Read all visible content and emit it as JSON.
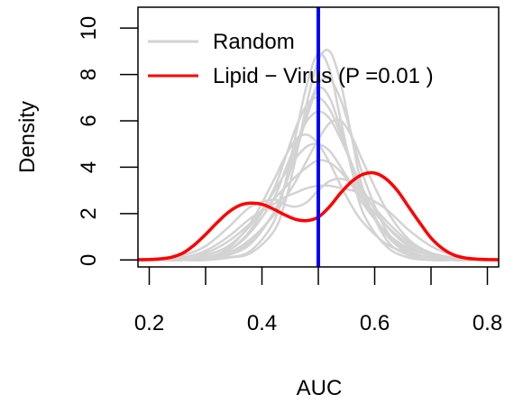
{
  "chart_data": {
    "type": "line",
    "title": "",
    "xlabel": "AUC",
    "ylabel": "Density",
    "xlim": [
      0.18,
      0.82
    ],
    "ylim": [
      -0.3,
      10.9
    ],
    "xticks": [
      0.2,
      0.4,
      0.6,
      0.8
    ],
    "xtick_labels": [
      "0.2",
      "0.4",
      "0.6",
      "0.8"
    ],
    "yticks": [
      0,
      2,
      4,
      6,
      8,
      10
    ],
    "ytick_labels": [
      "0",
      "2",
      "4",
      "6",
      "8",
      "10"
    ],
    "legend_position": "top-left",
    "grid": false,
    "vline": {
      "x": 0.5,
      "color": "#0000ff"
    },
    "colors": {
      "random": "#d3d3d3",
      "highlight": "#ff0000",
      "vline": "#0000ff"
    },
    "series": [
      {
        "name": "Random",
        "role": "random",
        "x": [
          0.18,
          0.22,
          0.26,
          0.3,
          0.34,
          0.38,
          0.42,
          0.44,
          0.46,
          0.48,
          0.5,
          0.52,
          0.54,
          0.56,
          0.58,
          0.62,
          0.66,
          0.7,
          0.74,
          0.78,
          0.82
        ],
        "values": [
          0,
          0,
          0,
          0.1,
          0.3,
          0.8,
          2.0,
          3.1,
          4.6,
          6.2,
          7.4,
          7.0,
          5.6,
          4.0,
          2.6,
          1.1,
          0.4,
          0.1,
          0,
          0,
          0
        ]
      },
      {
        "name": "",
        "role": "random",
        "x": [
          0.18,
          0.22,
          0.26,
          0.3,
          0.34,
          0.38,
          0.42,
          0.44,
          0.46,
          0.48,
          0.5,
          0.52,
          0.54,
          0.56,
          0.58,
          0.62,
          0.66,
          0.7,
          0.74,
          0.78,
          0.82
        ],
        "values": [
          0,
          0,
          0,
          0,
          0.1,
          0.4,
          1.6,
          3.2,
          5.4,
          7.6,
          8.9,
          8.2,
          6.0,
          3.8,
          2.0,
          0.6,
          0.1,
          0,
          0,
          0,
          0
        ]
      },
      {
        "name": "",
        "role": "random",
        "x": [
          0.18,
          0.22,
          0.26,
          0.3,
          0.34,
          0.38,
          0.42,
          0.44,
          0.46,
          0.48,
          0.5,
          0.52,
          0.54,
          0.56,
          0.58,
          0.62,
          0.66,
          0.7,
          0.74,
          0.78,
          0.82
        ],
        "values": [
          0,
          0,
          0.1,
          0.3,
          0.8,
          1.6,
          2.6,
          3.1,
          3.6,
          4.0,
          4.3,
          4.2,
          3.8,
          3.2,
          2.6,
          1.5,
          0.7,
          0.3,
          0.1,
          0,
          0
        ]
      },
      {
        "name": "",
        "role": "random",
        "x": [
          0.18,
          0.22,
          0.26,
          0.3,
          0.34,
          0.38,
          0.42,
          0.44,
          0.46,
          0.48,
          0.5,
          0.52,
          0.54,
          0.56,
          0.58,
          0.62,
          0.66,
          0.7,
          0.74,
          0.78,
          0.82
        ],
        "values": [
          0,
          0,
          0,
          0.1,
          0.4,
          1.2,
          2.6,
          3.8,
          5.0,
          6.0,
          6.4,
          6.1,
          5.2,
          4.1,
          3.0,
          1.5,
          0.6,
          0.2,
          0,
          0,
          0
        ]
      },
      {
        "name": "",
        "role": "random",
        "x": [
          0.18,
          0.22,
          0.26,
          0.3,
          0.34,
          0.38,
          0.42,
          0.44,
          0.46,
          0.48,
          0.5,
          0.52,
          0.54,
          0.56,
          0.58,
          0.62,
          0.66,
          0.7,
          0.74,
          0.78,
          0.82
        ],
        "values": [
          0,
          0,
          0.2,
          0.6,
          1.4,
          2.3,
          2.6,
          2.4,
          2.3,
          2.5,
          3.0,
          3.4,
          3.5,
          3.3,
          2.8,
          1.7,
          0.8,
          0.3,
          0.1,
          0,
          0
        ]
      },
      {
        "name": "",
        "role": "random",
        "x": [
          0.18,
          0.22,
          0.26,
          0.3,
          0.34,
          0.38,
          0.42,
          0.44,
          0.46,
          0.48,
          0.5,
          0.52,
          0.54,
          0.56,
          0.58,
          0.62,
          0.66,
          0.7,
          0.74,
          0.78,
          0.82
        ],
        "values": [
          0,
          0,
          0,
          0,
          0.1,
          0.3,
          1.2,
          2.4,
          4.4,
          6.8,
          8.6,
          9.0,
          7.6,
          5.2,
          3.0,
          0.9,
          0.2,
          0,
          0,
          0,
          0
        ]
      },
      {
        "name": "",
        "role": "random",
        "x": [
          0.18,
          0.22,
          0.26,
          0.3,
          0.34,
          0.38,
          0.42,
          0.44,
          0.46,
          0.48,
          0.5,
          0.52,
          0.54,
          0.56,
          0.58,
          0.62,
          0.66,
          0.7,
          0.74,
          0.78,
          0.82
        ],
        "values": [
          0,
          0,
          0,
          0.2,
          0.6,
          1.5,
          2.9,
          3.7,
          4.4,
          4.9,
          5.0,
          4.7,
          4.0,
          3.2,
          2.4,
          1.2,
          0.5,
          0.2,
          0,
          0,
          0
        ]
      },
      {
        "name": "",
        "role": "random",
        "x": [
          0.18,
          0.22,
          0.26,
          0.3,
          0.34,
          0.38,
          0.42,
          0.44,
          0.46,
          0.48,
          0.5,
          0.52,
          0.54,
          0.56,
          0.58,
          0.62,
          0.66,
          0.7,
          0.74,
          0.78,
          0.82
        ],
        "values": [
          0,
          0,
          0,
          0.1,
          0.3,
          0.9,
          1.9,
          2.6,
          3.4,
          4.3,
          5.2,
          5.9,
          6.0,
          5.3,
          4.2,
          2.2,
          0.9,
          0.3,
          0.1,
          0,
          0
        ]
      },
      {
        "name": "",
        "role": "random",
        "x": [
          0.18,
          0.22,
          0.26,
          0.3,
          0.34,
          0.38,
          0.42,
          0.44,
          0.46,
          0.48,
          0.5,
          0.52,
          0.54,
          0.56,
          0.58,
          0.62,
          0.66,
          0.7,
          0.74,
          0.78,
          0.82
        ],
        "values": [
          0,
          0,
          0,
          0.1,
          0.5,
          1.6,
          3.4,
          4.4,
          5.2,
          5.4,
          5.0,
          4.2,
          3.2,
          2.3,
          1.6,
          0.7,
          0.3,
          0.1,
          0,
          0,
          0
        ]
      },
      {
        "name": "",
        "role": "random",
        "x": [
          0.18,
          0.22,
          0.26,
          0.3,
          0.34,
          0.38,
          0.42,
          0.44,
          0.46,
          0.48,
          0.5,
          0.52,
          0.54,
          0.56,
          0.58,
          0.62,
          0.66,
          0.7,
          0.74,
          0.78,
          0.82
        ],
        "values": [
          0,
          0,
          0,
          0,
          0.2,
          0.7,
          2.0,
          3.2,
          4.8,
          6.4,
          7.6,
          7.8,
          6.9,
          5.3,
          3.6,
          1.3,
          0.4,
          0.1,
          0,
          0,
          0
        ]
      },
      {
        "name": "",
        "role": "random",
        "x": [
          0.18,
          0.22,
          0.26,
          0.3,
          0.34,
          0.38,
          0.42,
          0.44,
          0.46,
          0.48,
          0.5,
          0.52,
          0.54,
          0.56,
          0.58,
          0.62,
          0.66,
          0.7,
          0.74,
          0.78,
          0.82
        ],
        "values": [
          0,
          0,
          0.1,
          0.4,
          1.0,
          1.8,
          2.4,
          2.7,
          2.9,
          3.1,
          3.2,
          3.2,
          3.1,
          3.0,
          2.8,
          2.2,
          1.3,
          0.6,
          0.2,
          0,
          0
        ]
      },
      {
        "name": "",
        "role": "random",
        "x": [
          0.18,
          0.22,
          0.26,
          0.3,
          0.34,
          0.38,
          0.42,
          0.44,
          0.46,
          0.48,
          0.5,
          0.52,
          0.54,
          0.56,
          0.58,
          0.62,
          0.66,
          0.7,
          0.74,
          0.78,
          0.82
        ],
        "values": [
          0,
          0,
          0,
          0.1,
          0.4,
          1.3,
          3.0,
          4.3,
          5.7,
          6.7,
          7.0,
          6.5,
          5.4,
          4.1,
          2.8,
          1.1,
          0.3,
          0.1,
          0,
          0,
          0
        ]
      },
      {
        "name": "Lipid − Virus (P =0.01 )",
        "role": "highlight",
        "x": [
          0.18,
          0.2,
          0.22,
          0.24,
          0.26,
          0.28,
          0.3,
          0.32,
          0.34,
          0.36,
          0.38,
          0.4,
          0.42,
          0.44,
          0.46,
          0.48,
          0.5,
          0.52,
          0.54,
          0.56,
          0.58,
          0.6,
          0.62,
          0.64,
          0.66,
          0.68,
          0.7,
          0.72,
          0.74,
          0.76,
          0.78,
          0.8,
          0.82
        ],
        "values": [
          0.01,
          0.02,
          0.05,
          0.12,
          0.3,
          0.65,
          1.1,
          1.6,
          2.05,
          2.35,
          2.45,
          2.4,
          2.2,
          1.95,
          1.75,
          1.7,
          1.85,
          2.3,
          2.9,
          3.4,
          3.7,
          3.75,
          3.5,
          3.0,
          2.3,
          1.6,
          0.95,
          0.5,
          0.22,
          0.09,
          0.04,
          0.02,
          0.01
        ]
      }
    ]
  }
}
